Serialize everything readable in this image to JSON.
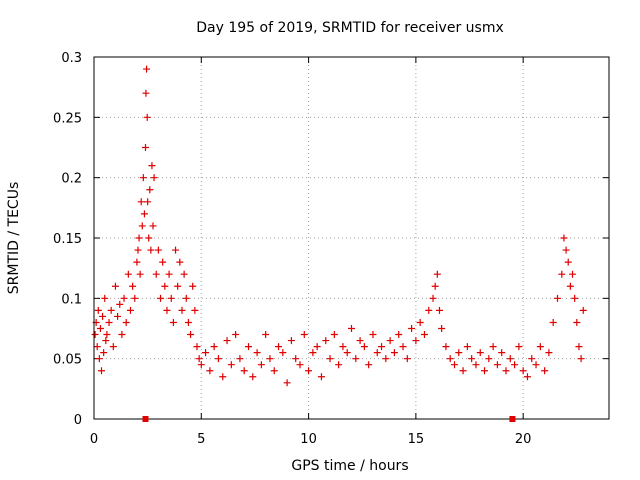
{
  "chart_data": {
    "type": "scatter",
    "title": "Day 195 of 2019, SRMTID for receiver usmx",
    "xlabel": "GPS time / hours",
    "ylabel": "SRMTID / TECUs",
    "xlim": [
      0,
      24
    ],
    "ylim": [
      0,
      0.3
    ],
    "xticks": [
      0,
      5,
      10,
      15,
      20
    ],
    "xtick_labels": [
      "0",
      "5",
      "10",
      "15",
      "20"
    ],
    "yticks": [
      0,
      0.05,
      0.1,
      0.15,
      0.2,
      0.25,
      0.3
    ],
    "ytick_labels": [
      "0",
      "0.05",
      "0.1",
      "0.15",
      "0.2",
      "0.25",
      "0.3"
    ],
    "grid": true,
    "marker": "+",
    "series_color": "#e00000",
    "baseline_markers": [
      2.4,
      19.5
    ],
    "series": [
      {
        "name": "SRMTID",
        "x": [
          0.05,
          0.1,
          0.15,
          0.2,
          0.25,
          0.3,
          0.35,
          0.4,
          0.45,
          0.5,
          0.55,
          0.6,
          0.7,
          0.8,
          0.9,
          1.0,
          1.1,
          1.2,
          1.3,
          1.4,
          1.5,
          1.6,
          1.7,
          1.8,
          1.9,
          2.0,
          2.05,
          2.1,
          2.15,
          2.2,
          2.25,
          2.3,
          2.35,
          2.4,
          2.42,
          2.45,
          2.48,
          2.5,
          2.55,
          2.6,
          2.65,
          2.7,
          2.75,
          2.8,
          2.9,
          3.0,
          3.1,
          3.2,
          3.3,
          3.4,
          3.5,
          3.6,
          3.7,
          3.8,
          3.9,
          4.0,
          4.1,
          4.2,
          4.3,
          4.4,
          4.5,
          4.6,
          4.7,
          4.8,
          4.9,
          5.0,
          5.2,
          5.4,
          5.6,
          5.8,
          6.0,
          6.2,
          6.4,
          6.6,
          6.8,
          7.0,
          7.2,
          7.4,
          7.6,
          7.8,
          8.0,
          8.2,
          8.4,
          8.6,
          8.8,
          9.0,
          9.2,
          9.4,
          9.6,
          9.8,
          10.0,
          10.2,
          10.4,
          10.6,
          10.8,
          11.0,
          11.2,
          11.4,
          11.6,
          11.8,
          12.0,
          12.2,
          12.4,
          12.6,
          12.8,
          13.0,
          13.2,
          13.4,
          13.6,
          13.8,
          14.0,
          14.2,
          14.4,
          14.6,
          14.8,
          15.0,
          15.2,
          15.4,
          15.6,
          15.8,
          15.9,
          16.0,
          16.1,
          16.2,
          16.4,
          16.6,
          16.8,
          17.0,
          17.2,
          17.4,
          17.6,
          17.8,
          18.0,
          18.2,
          18.4,
          18.6,
          18.8,
          19.0,
          19.2,
          19.4,
          19.6,
          19.8,
          20.0,
          20.2,
          20.4,
          20.6,
          20.8,
          21.0,
          21.2,
          21.4,
          21.6,
          21.8,
          21.9,
          22.0,
          22.1,
          22.2,
          22.3,
          22.4,
          22.5,
          22.6,
          22.7,
          22.8
        ],
        "y": [
          0.07,
          0.08,
          0.06,
          0.09,
          0.05,
          0.075,
          0.04,
          0.085,
          0.055,
          0.1,
          0.065,
          0.07,
          0.08,
          0.09,
          0.06,
          0.11,
          0.085,
          0.095,
          0.07,
          0.1,
          0.08,
          0.12,
          0.09,
          0.11,
          0.1,
          0.13,
          0.14,
          0.15,
          0.12,
          0.18,
          0.16,
          0.2,
          0.17,
          0.225,
          0.27,
          0.29,
          0.25,
          0.18,
          0.15,
          0.19,
          0.14,
          0.21,
          0.16,
          0.2,
          0.12,
          0.14,
          0.1,
          0.13,
          0.11,
          0.09,
          0.12,
          0.1,
          0.08,
          0.14,
          0.11,
          0.13,
          0.09,
          0.12,
          0.1,
          0.08,
          0.07,
          0.11,
          0.09,
          0.06,
          0.05,
          0.045,
          0.055,
          0.04,
          0.06,
          0.05,
          0.035,
          0.065,
          0.045,
          0.07,
          0.05,
          0.04,
          0.06,
          0.035,
          0.055,
          0.045,
          0.07,
          0.05,
          0.04,
          0.06,
          0.055,
          0.03,
          0.065,
          0.05,
          0.045,
          0.07,
          0.04,
          0.055,
          0.06,
          0.035,
          0.065,
          0.05,
          0.07,
          0.045,
          0.06,
          0.055,
          0.075,
          0.05,
          0.065,
          0.06,
          0.045,
          0.07,
          0.055,
          0.06,
          0.05,
          0.065,
          0.055,
          0.07,
          0.06,
          0.05,
          0.075,
          0.065,
          0.08,
          0.07,
          0.09,
          0.1,
          0.11,
          0.12,
          0.09,
          0.075,
          0.06,
          0.05,
          0.045,
          0.055,
          0.04,
          0.06,
          0.05,
          0.045,
          0.055,
          0.04,
          0.05,
          0.06,
          0.045,
          0.055,
          0.04,
          0.05,
          0.045,
          0.06,
          0.04,
          0.035,
          0.05,
          0.045,
          0.06,
          0.04,
          0.055,
          0.08,
          0.1,
          0.12,
          0.15,
          0.14,
          0.13,
          0.11,
          0.12,
          0.1,
          0.08,
          0.06,
          0.05,
          0.09
        ]
      }
    ]
  }
}
